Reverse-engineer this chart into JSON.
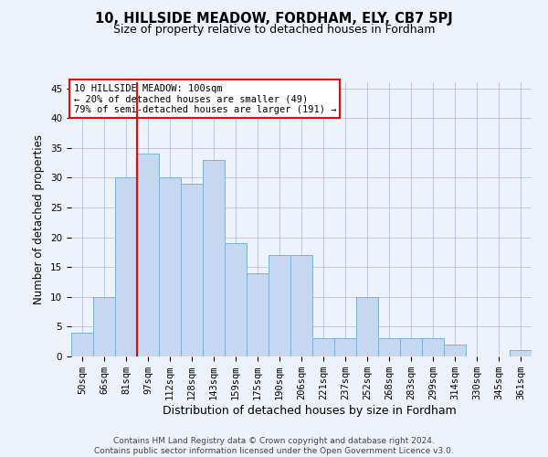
{
  "title": "10, HILLSIDE MEADOW, FORDHAM, ELY, CB7 5PJ",
  "subtitle": "Size of property relative to detached houses in Fordham",
  "xlabel": "Distribution of detached houses by size in Fordham",
  "ylabel": "Number of detached properties",
  "categories": [
    "50sqm",
    "66sqm",
    "81sqm",
    "97sqm",
    "112sqm",
    "128sqm",
    "143sqm",
    "159sqm",
    "175sqm",
    "190sqm",
    "206sqm",
    "221sqm",
    "237sqm",
    "252sqm",
    "268sqm",
    "283sqm",
    "299sqm",
    "314sqm",
    "330sqm",
    "345sqm",
    "361sqm"
  ],
  "values": [
    4,
    10,
    30,
    34,
    30,
    29,
    33,
    19,
    14,
    17,
    17,
    3,
    3,
    10,
    3,
    3,
    3,
    2,
    0,
    0,
    1
  ],
  "bar_color": "#c5d8f0",
  "bar_edge_color": "#7ab4d8",
  "annotation_box_text": "10 HILLSIDE MEADOW: 100sqm\n← 20% of detached houses are smaller (49)\n79% of semi-detached houses are larger (191) →",
  "annotation_box_color": "white",
  "annotation_box_edge_color": "red",
  "vline_color": "red",
  "vline_x": 2.5,
  "ylim": [
    0,
    46
  ],
  "yticks": [
    0,
    5,
    10,
    15,
    20,
    25,
    30,
    35,
    40,
    45
  ],
  "footer_text": "Contains HM Land Registry data © Crown copyright and database right 2024.\nContains public sector information licensed under the Open Government Licence v3.0.",
  "background_color": "#eef2fb",
  "grid_color": "#b0b8d8",
  "title_fontsize": 10.5,
  "subtitle_fontsize": 9,
  "axis_label_fontsize": 8.5,
  "tick_fontsize": 7.5,
  "footer_fontsize": 6.5,
  "annot_fontsize": 7.5
}
